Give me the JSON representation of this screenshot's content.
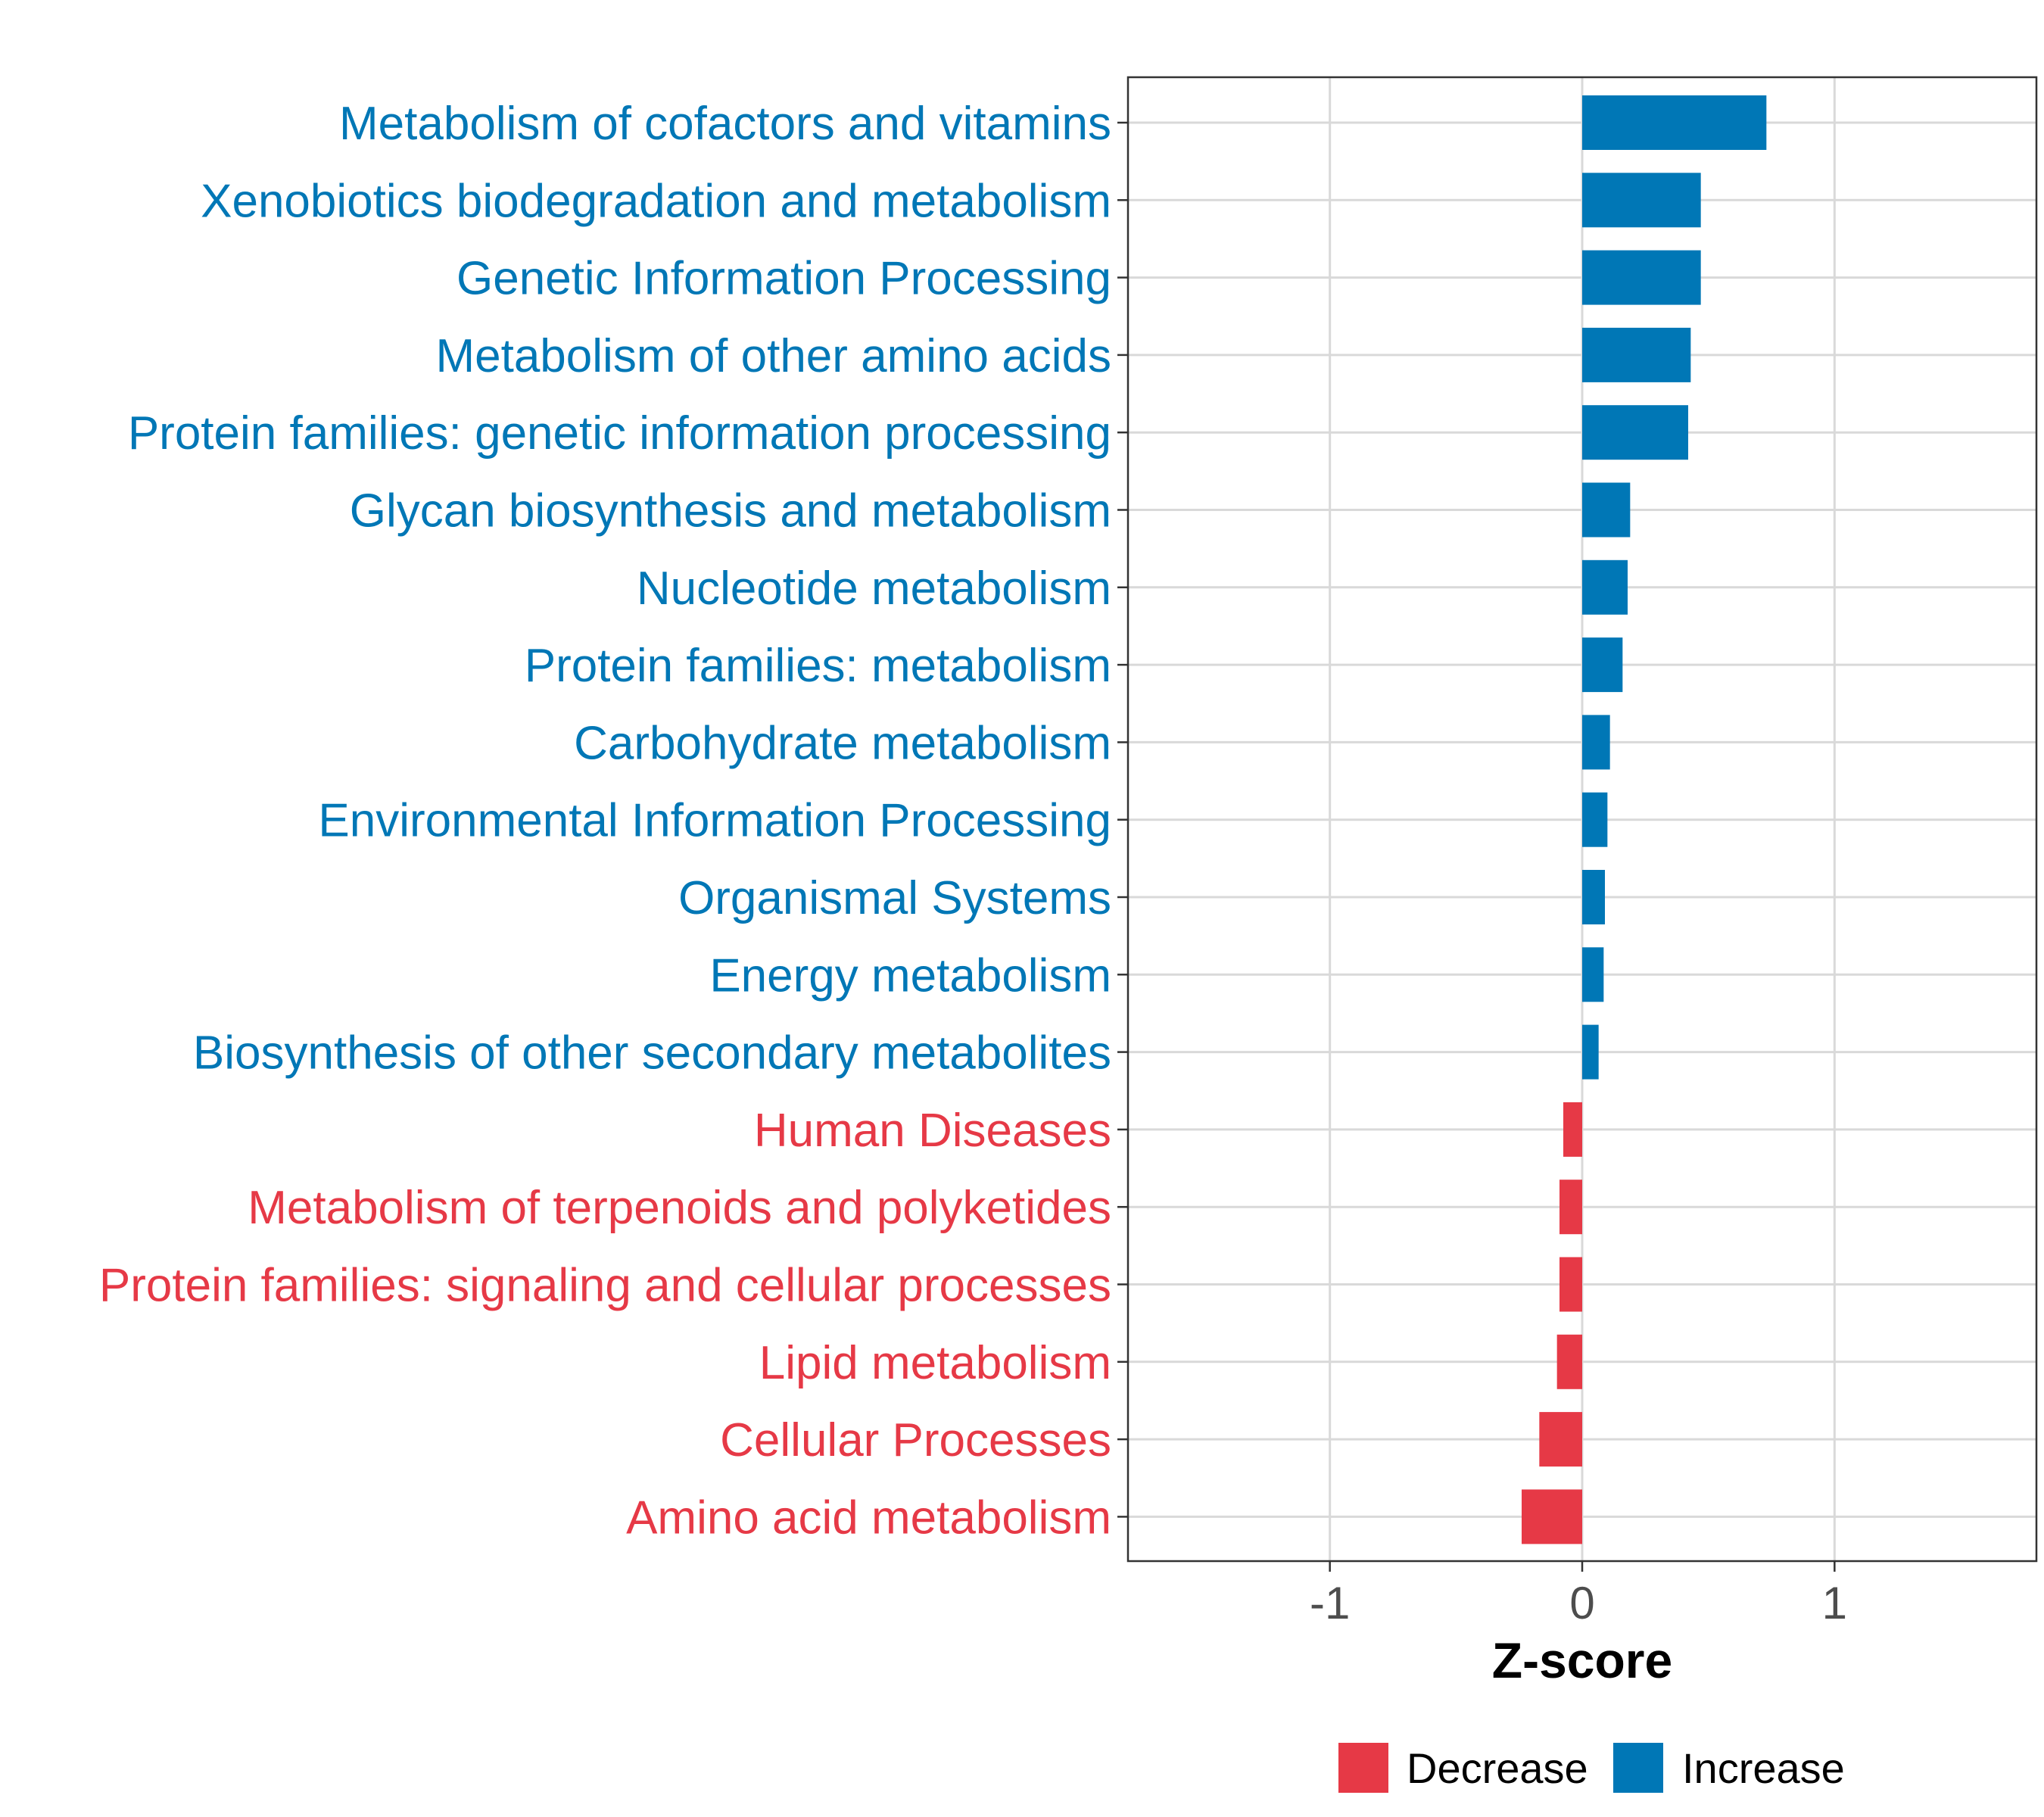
{
  "chart_data": {
    "type": "bar",
    "orientation": "horizontal",
    "xlabel": "Z-score",
    "xlim": [
      -1.8,
      1.8
    ],
    "xticks": [
      -1,
      0,
      1
    ],
    "xtick_labels": [
      "-1",
      "0",
      "1"
    ],
    "grid": true,
    "legend_position": "bottom",
    "colors": {
      "Decrease": "#e63946",
      "Increase": "#0077b6"
    },
    "legend": [
      {
        "name": "Decrease",
        "color": "#e63946"
      },
      {
        "name": "Increase",
        "color": "#0077b6"
      }
    ],
    "bars": [
      {
        "category": "Metabolism of cofactors and vitamins",
        "value": 0.73,
        "group": "Increase"
      },
      {
        "category": "Xenobiotics biodegradation and metabolism",
        "value": 0.47,
        "group": "Increase"
      },
      {
        "category": "Genetic Information Processing",
        "value": 0.47,
        "group": "Increase"
      },
      {
        "category": "Metabolism of other amino acids",
        "value": 0.43,
        "group": "Increase"
      },
      {
        "category": "Protein families: genetic information processing",
        "value": 0.42,
        "group": "Increase"
      },
      {
        "category": "Glycan biosynthesis and metabolism",
        "value": 0.19,
        "group": "Increase"
      },
      {
        "category": "Nucleotide metabolism",
        "value": 0.18,
        "group": "Increase"
      },
      {
        "category": "Protein families: metabolism",
        "value": 0.16,
        "group": "Increase"
      },
      {
        "category": "Carbohydrate metabolism",
        "value": 0.11,
        "group": "Increase"
      },
      {
        "category": "Environmental Information Processing",
        "value": 0.1,
        "group": "Increase"
      },
      {
        "category": "Organismal Systems",
        "value": 0.09,
        "group": "Increase"
      },
      {
        "category": "Energy metabolism",
        "value": 0.085,
        "group": "Increase"
      },
      {
        "category": "Biosynthesis of other secondary metabolites",
        "value": 0.065,
        "group": "Increase"
      },
      {
        "category": "Human Diseases",
        "value": -0.075,
        "group": "Decrease"
      },
      {
        "category": "Metabolism of terpenoids and polyketides",
        "value": -0.09,
        "group": "Decrease"
      },
      {
        "category": "Protein families: signaling and cellular processes",
        "value": -0.09,
        "group": "Decrease"
      },
      {
        "category": "Lipid metabolism",
        "value": -0.1,
        "group": "Decrease"
      },
      {
        "category": "Cellular Processes",
        "value": -0.17,
        "group": "Decrease"
      },
      {
        "category": "Amino acid metabolism",
        "value": -0.24,
        "group": "Decrease"
      }
    ]
  }
}
